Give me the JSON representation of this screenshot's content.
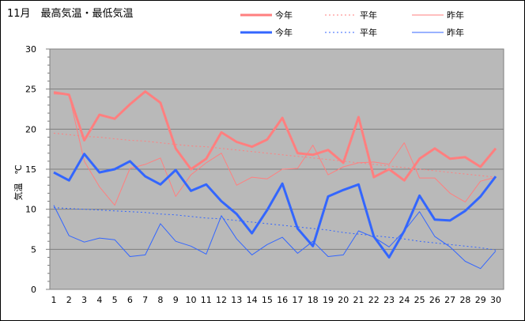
{
  "chart_data": {
    "type": "line",
    "title": "11月　最高気温・最低気温",
    "ylabel": "気温　℃",
    "xlabel": "",
    "ylim": [
      0,
      30
    ],
    "y_ticks": [
      0,
      5,
      10,
      15,
      20,
      25,
      30
    ],
    "x": [
      1,
      2,
      3,
      4,
      5,
      6,
      7,
      8,
      9,
      10,
      11,
      12,
      13,
      14,
      15,
      16,
      17,
      18,
      19,
      20,
      21,
      22,
      23,
      24,
      25,
      26,
      27,
      28,
      29,
      30
    ],
    "grid": "horizontal",
    "legend_position": "top-right",
    "series": [
      {
        "name": "今年",
        "group": "max",
        "kind": "this_year",
        "color": "#ff7f7f",
        "values": [
          24.6,
          24.3,
          18.6,
          21.8,
          21.3,
          23.1,
          24.7,
          23.3,
          17.6,
          15.0,
          16.3,
          19.6,
          18.4,
          17.8,
          18.7,
          21.4,
          17.0,
          16.8,
          17.4,
          15.8,
          21.5,
          14.0,
          15.0,
          13.6,
          16.3,
          17.6,
          16.3,
          16.5,
          15.3,
          17.6
        ]
      },
      {
        "name": "平年",
        "group": "max",
        "kind": "normal",
        "color": "#ff7f7f",
        "values": [
          19.5,
          19.3,
          19.1,
          19.0,
          18.8,
          18.6,
          18.5,
          18.3,
          18.1,
          17.9,
          17.8,
          17.6,
          17.4,
          17.2,
          17.0,
          16.8,
          16.6,
          16.4,
          16.2,
          16.0,
          15.8,
          15.6,
          15.4,
          15.2,
          15.0,
          14.8,
          14.6,
          14.4,
          14.2,
          14.0
        ]
      },
      {
        "name": "昨年",
        "group": "max",
        "kind": "last_year",
        "color": "#ff7f7f",
        "values": [
          24.4,
          24.3,
          16.0,
          12.8,
          10.5,
          15.1,
          15.6,
          16.4,
          11.6,
          14.3,
          15.8,
          17.0,
          13.0,
          14.0,
          13.8,
          15.0,
          15.1,
          18.0,
          14.3,
          15.3,
          15.8,
          15.9,
          15.6,
          18.3,
          13.9,
          13.9,
          12.0,
          10.9,
          13.5,
          14.0
        ]
      },
      {
        "name": "今年",
        "group": "min",
        "kind": "this_year",
        "color": "#3366ff",
        "values": [
          14.6,
          13.6,
          16.9,
          14.6,
          15.0,
          16.0,
          14.1,
          13.1,
          14.9,
          12.3,
          13.1,
          11.0,
          9.4,
          7.0,
          9.9,
          13.2,
          7.6,
          5.4,
          11.6,
          12.4,
          13.1,
          6.6,
          4.0,
          7.3,
          11.7,
          8.7,
          8.6,
          9.8,
          11.6,
          14.1
        ]
      },
      {
        "name": "平年",
        "group": "min",
        "kind": "normal",
        "color": "#3366ff",
        "values": [
          10.2,
          10.1,
          10.0,
          9.9,
          9.8,
          9.7,
          9.6,
          9.4,
          9.3,
          9.1,
          8.9,
          8.8,
          8.6,
          8.4,
          8.2,
          8.0,
          7.8,
          7.6,
          7.4,
          7.1,
          6.9,
          6.7,
          6.5,
          6.3,
          6.0,
          5.8,
          5.6,
          5.4,
          5.2,
          4.9
        ]
      },
      {
        "name": "昨年",
        "group": "min",
        "kind": "last_year",
        "color": "#3366ff",
        "values": [
          10.5,
          6.7,
          5.9,
          6.4,
          6.2,
          4.1,
          4.3,
          8.2,
          6.0,
          5.4,
          4.4,
          9.2,
          6.3,
          4.3,
          5.6,
          6.5,
          4.5,
          6.0,
          4.1,
          4.3,
          7.3,
          6.5,
          5.3,
          7.3,
          9.7,
          6.6,
          5.3,
          3.5,
          2.6,
          4.8
        ]
      }
    ]
  }
}
